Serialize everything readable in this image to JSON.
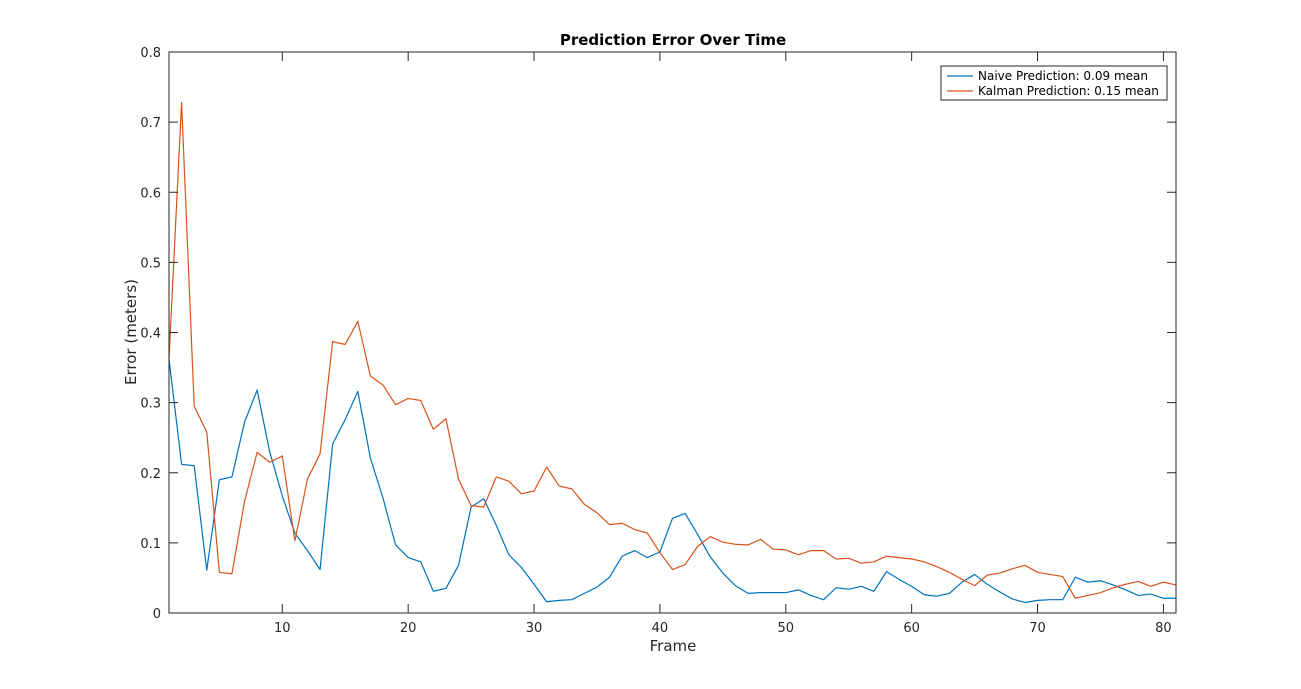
{
  "chart_data": {
    "type": "line",
    "title": "Prediction Error Over Time",
    "xlabel": "Frame",
    "ylabel": "Error (meters)",
    "xlim": [
      1,
      81
    ],
    "ylim": [
      0,
      0.8
    ],
    "xticks": [
      10,
      20,
      30,
      40,
      50,
      60,
      70,
      80
    ],
    "yticks": [
      0,
      0.1,
      0.2,
      0.3,
      0.4,
      0.5,
      0.6,
      0.7,
      0.8
    ],
    "ytick_labels": [
      "0",
      "0.1",
      "0.2",
      "0.3",
      "0.4",
      "0.5",
      "0.6",
      "0.7",
      "0.8"
    ],
    "grid": false,
    "legend_position": "top-right",
    "x_start": 1,
    "series": [
      {
        "name": "Naive Prediction: 0.09 mean",
        "color": "#0072BD",
        "values": [
          0.362,
          0.212,
          0.21,
          0.061,
          0.19,
          0.194,
          0.272,
          0.318,
          0.23,
          0.167,
          0.114,
          0.089,
          0.062,
          0.241,
          0.276,
          0.316,
          0.221,
          0.164,
          0.097,
          0.079,
          0.073,
          0.031,
          0.035,
          0.068,
          0.151,
          0.163,
          0.125,
          0.083,
          0.065,
          0.041,
          0.016,
          0.018,
          0.019,
          0.028,
          0.037,
          0.051,
          0.081,
          0.089,
          0.079,
          0.087,
          0.135,
          0.142,
          0.112,
          0.08,
          0.057,
          0.039,
          0.028,
          0.029,
          0.029,
          0.029,
          0.033,
          0.025,
          0.019,
          0.036,
          0.034,
          0.038,
          0.031,
          0.059,
          0.048,
          0.038,
          0.026,
          0.024,
          0.028,
          0.044,
          0.055,
          0.041,
          0.03,
          0.02,
          0.015,
          0.018,
          0.019,
          0.019,
          0.051,
          0.044,
          0.046,
          0.04,
          0.033,
          0.025,
          0.027,
          0.021,
          0.021
        ]
      },
      {
        "name": "Kalman Prediction: 0.15 mean",
        "color": "#D95319",
        "values": [
          0.362,
          0.728,
          0.295,
          0.258,
          0.058,
          0.056,
          0.159,
          0.229,
          0.215,
          0.224,
          0.103,
          0.191,
          0.227,
          0.387,
          0.383,
          0.416,
          0.338,
          0.325,
          0.297,
          0.306,
          0.303,
          0.262,
          0.277,
          0.191,
          0.153,
          0.151,
          0.194,
          0.188,
          0.17,
          0.174,
          0.208,
          0.181,
          0.177,
          0.155,
          0.143,
          0.126,
          0.128,
          0.119,
          0.114,
          0.086,
          0.062,
          0.069,
          0.095,
          0.109,
          0.101,
          0.098,
          0.097,
          0.105,
          0.091,
          0.09,
          0.083,
          0.089,
          0.089,
          0.077,
          0.078,
          0.071,
          0.073,
          0.081,
          0.079,
          0.077,
          0.073,
          0.066,
          0.058,
          0.048,
          0.039,
          0.054,
          0.057,
          0.063,
          0.068,
          0.058,
          0.055,
          0.052,
          0.021,
          0.025,
          0.029,
          0.036,
          0.041,
          0.045,
          0.038,
          0.044,
          0.04
        ]
      }
    ]
  }
}
